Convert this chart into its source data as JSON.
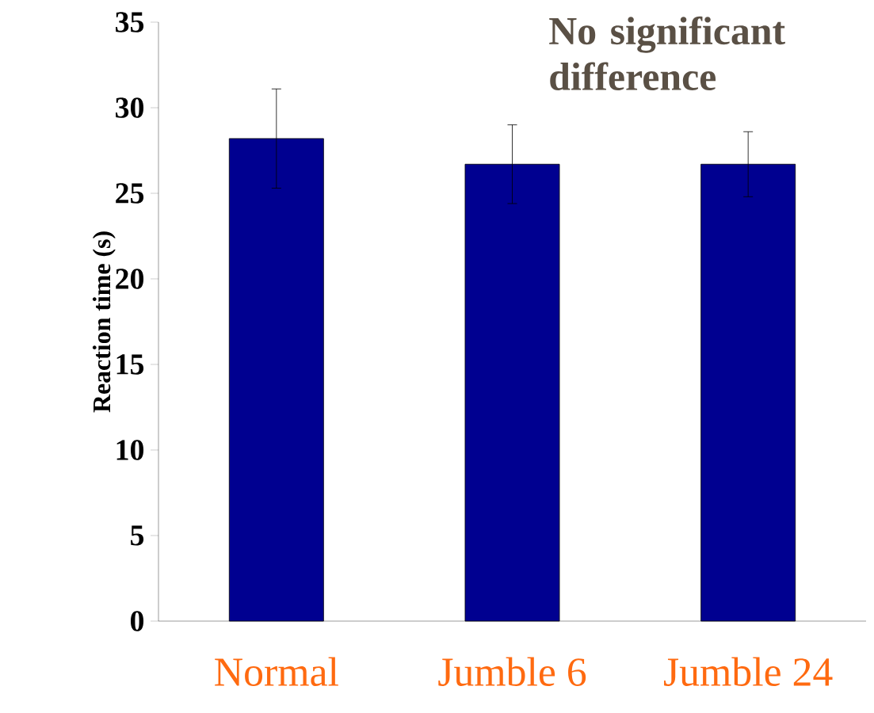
{
  "chart_data": {
    "type": "bar",
    "categories": [
      "Normal",
      "Jumble 6",
      "Jumble 24"
    ],
    "values": [
      28.2,
      26.7,
      26.7
    ],
    "errors": [
      2.9,
      2.3,
      1.9
    ],
    "color": "#000090",
    "ylabel": "Reaction time (s)",
    "ylim": [
      0,
      35
    ],
    "yticks": [
      0,
      5,
      10,
      15,
      20,
      25,
      30,
      35
    ],
    "annotations": [
      "No significant difference"
    ]
  }
}
